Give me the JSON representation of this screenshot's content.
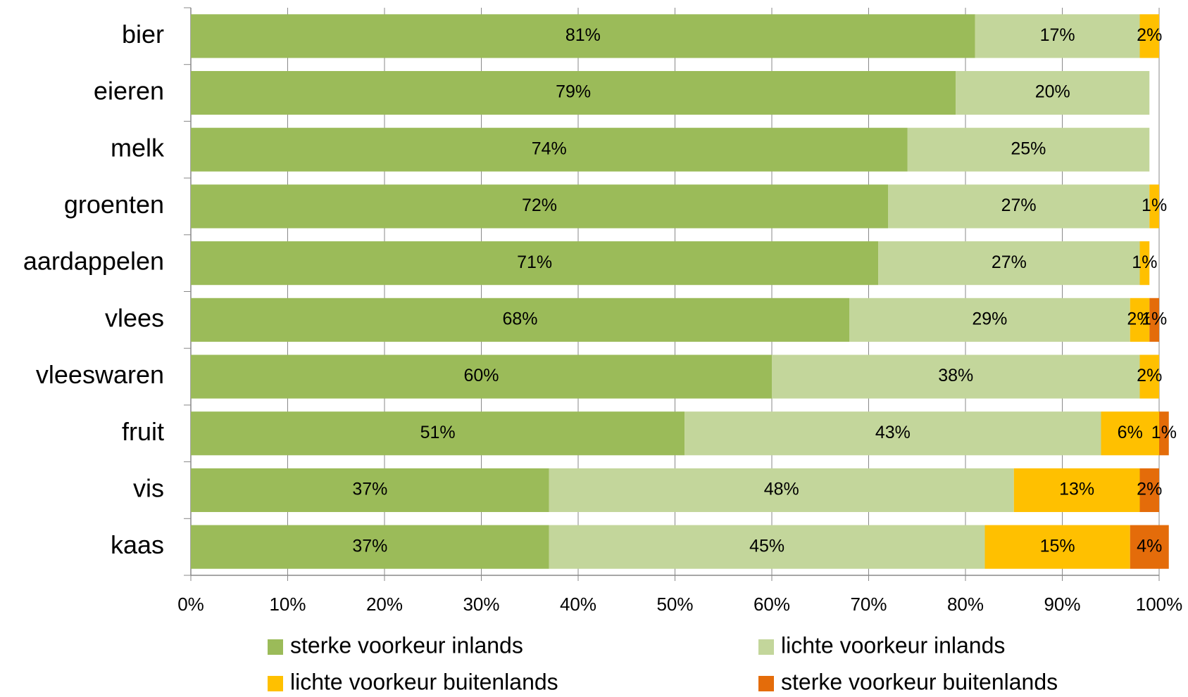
{
  "chart_data": {
    "type": "stacked-bar-horizontal",
    "categories": [
      "bier",
      "eieren",
      "melk",
      "groenten",
      "aardappelen",
      "vlees",
      "vleeswaren",
      "fruit",
      "vis",
      "kaas"
    ],
    "series": [
      {
        "name": "sterke voorkeur inlands",
        "color": "#9bbb59",
        "values": [
          81,
          79,
          74,
          72,
          71,
          68,
          60,
          51,
          37,
          37
        ],
        "value_labels": [
          "81%",
          "79%",
          "74%",
          "72%",
          "71%",
          "68%",
          "60%",
          "51%",
          "37%",
          "37%"
        ]
      },
      {
        "name": "lichte voorkeur inlands",
        "color": "#c3d69b",
        "values": [
          17,
          20,
          25,
          27,
          27,
          29,
          38,
          43,
          48,
          45
        ],
        "value_labels": [
          "17%",
          "20%",
          "25%",
          "27%",
          "27%",
          "29%",
          "38%",
          "43%",
          "48%",
          "45%"
        ]
      },
      {
        "name": "lichte voorkeur buitenlands",
        "color": "#ffc000",
        "values": [
          2,
          null,
          null,
          1,
          1,
          2,
          2,
          6,
          13,
          15
        ],
        "value_labels": [
          "2%",
          null,
          null,
          "1%",
          "1%",
          "2%",
          "2%",
          "6%",
          "13%",
          "15%"
        ]
      },
      {
        "name": "sterke voorkeur buitenlands",
        "color": "#e46c0a",
        "values": [
          null,
          null,
          null,
          null,
          null,
          1,
          null,
          1,
          2,
          4
        ],
        "value_labels": [
          null,
          null,
          null,
          null,
          null,
          "1%",
          null,
          "1%",
          "2%",
          "4%"
        ]
      }
    ],
    "xlim": [
      0,
      100
    ],
    "xticks": [
      {
        "value": 0,
        "label": "0%"
      },
      {
        "value": 10,
        "label": "10%"
      },
      {
        "value": 20,
        "label": "20%"
      },
      {
        "value": 30,
        "label": "30%"
      },
      {
        "value": 40,
        "label": "40%"
      },
      {
        "value": 50,
        "label": "50%"
      },
      {
        "value": 60,
        "label": "60%"
      },
      {
        "value": 70,
        "label": "70%"
      },
      {
        "value": 80,
        "label": "80%"
      },
      {
        "value": 90,
        "label": "90%"
      },
      {
        "value": 100,
        "label": "100%"
      }
    ],
    "grid": true,
    "legend": "bottom"
  }
}
